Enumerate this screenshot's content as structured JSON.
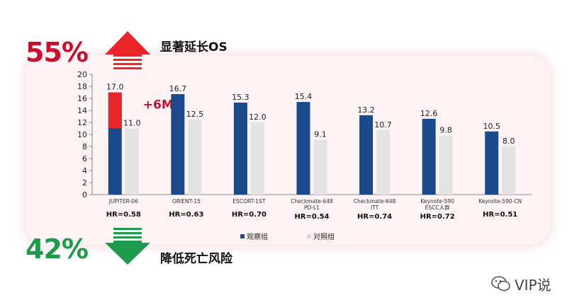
{
  "headline_up": {
    "pct": "55%",
    "text": "显著延长OS",
    "color": "#c8102e"
  },
  "headline_down": {
    "pct": "42%",
    "text": "降低死亡风险",
    "color": "#1e9a4c"
  },
  "gain_label": "+6M",
  "watermark": "VIP说",
  "chart_data": {
    "type": "bar",
    "categories": [
      "JUPITER-06",
      "ORIENT-15",
      "ESCORT-1ST",
      "Checkmate-648 PD-L1",
      "Checkmate-648 ITT",
      "Keynote-590 ESCC人群",
      "Keynote-590-CN"
    ],
    "category_lines": [
      [
        "JUPITER-06"
      ],
      [
        "ORIENT-15"
      ],
      [
        "ESCORT-1ST"
      ],
      [
        "Checkmate-648",
        "PD-L1"
      ],
      [
        "Checkmate-648",
        "ITT"
      ],
      [
        "Keynote-590",
        "ESCC人群"
      ],
      [
        "Keynote-590-CN"
      ]
    ],
    "series": [
      {
        "name": "观察组",
        "values": [
          17.0,
          16.7,
          15.3,
          15.4,
          13.2,
          12.6,
          10.5
        ],
        "color": "#1a4a8c"
      },
      {
        "name": "对照组",
        "values": [
          11.0,
          12.5,
          12.0,
          9.1,
          10.7,
          9.8,
          8.0
        ],
        "color": "#e3e3e3"
      }
    ],
    "value_labels": [
      [
        "17.0",
        "16.7",
        "15.3",
        "15.4",
        "13.2",
        "12.6",
        "10.5"
      ],
      [
        "11.0",
        "12.5",
        "12.0",
        "9.1",
        "10.7",
        "9.8",
        "8.0"
      ]
    ],
    "hr_labels": [
      "HR=0.58",
      "HR=0.63",
      "HR=0.70",
      "HR=0.54",
      "HR=0.74",
      "HR=0.72",
      "HR=0.51"
    ],
    "highlight": {
      "category": "JUPITER-06",
      "from": 11.0,
      "to": 17.0,
      "color": "#e8262a"
    },
    "yticks": [
      0,
      2,
      4,
      6,
      8,
      10,
      12,
      14,
      16,
      18,
      20
    ],
    "ylim": [
      0,
      20
    ],
    "title": "",
    "xlabel": "",
    "ylabel": "",
    "legend_position": "bottom-center"
  }
}
